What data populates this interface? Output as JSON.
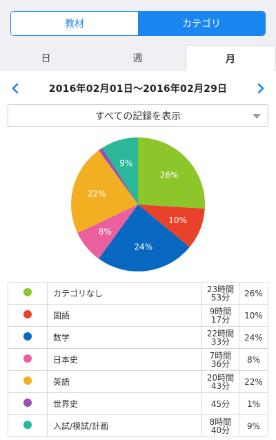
{
  "segmented": {
    "left_label": "教材",
    "right_label": "カテゴリ",
    "selected": "カテゴリ"
  },
  "tabs": [
    {
      "label": "日"
    },
    {
      "label": "週"
    },
    {
      "label": "月",
      "active": true
    }
  ],
  "date_nav": {
    "range": "2016年02月01日〜2016年02月29日",
    "prev_icon": "chevron-left-icon",
    "next_icon": "chevron-right-icon"
  },
  "filter": {
    "label": "すべての記録を表示"
  },
  "colors": {
    "accent": "#1a86f0",
    "chevron": "#1a86f0"
  },
  "chart_data": {
    "type": "pie",
    "slices": [
      {
        "label": "カテゴリなし",
        "value": 26,
        "display": "26%",
        "color": "#8cc62a"
      },
      {
        "label": "国語",
        "value": 10,
        "display": "10%",
        "color": "#e8432a"
      },
      {
        "label": "数学",
        "value": 24,
        "display": "24%",
        "color": "#0867c0"
      },
      {
        "label": "日本史",
        "value": 8,
        "display": "8%",
        "color": "#ea609f"
      },
      {
        "label": "英語",
        "value": 22,
        "display": "22%",
        "color": "#f2af22"
      },
      {
        "label": "世界史",
        "value": 1,
        "display": "",
        "color": "#9b4fb5"
      },
      {
        "label": "入試/模試/計画",
        "value": 9,
        "display": "9%",
        "color": "#2ab898"
      }
    ]
  },
  "legend": [
    {
      "name": "カテゴリなし",
      "time_line1": "23時間",
      "time_line2": "53分",
      "pct": "26%",
      "color": "#8cc62a"
    },
    {
      "name": "国語",
      "time_line1": "9時間",
      "time_line2": "17分",
      "pct": "10%",
      "color": "#e8432a"
    },
    {
      "name": "数学",
      "time_line1": "22時間",
      "time_line2": "33分",
      "pct": "24%",
      "color": "#0867c0"
    },
    {
      "name": "日本史",
      "time_line1": "7時間",
      "time_line2": "36分",
      "pct": "8%",
      "color": "#ea609f"
    },
    {
      "name": "英語",
      "time_line1": "20時間",
      "time_line2": "43分",
      "pct": "22%",
      "color": "#f2af22"
    },
    {
      "name": "世界史",
      "time_line1": "45分",
      "time_line2": "",
      "pct": "1%",
      "color": "#9b4fb5"
    },
    {
      "name": "入試/模試/計画",
      "time_line1": "8時間",
      "time_line2": "40分",
      "pct": "9%",
      "color": "#2ab898"
    }
  ]
}
